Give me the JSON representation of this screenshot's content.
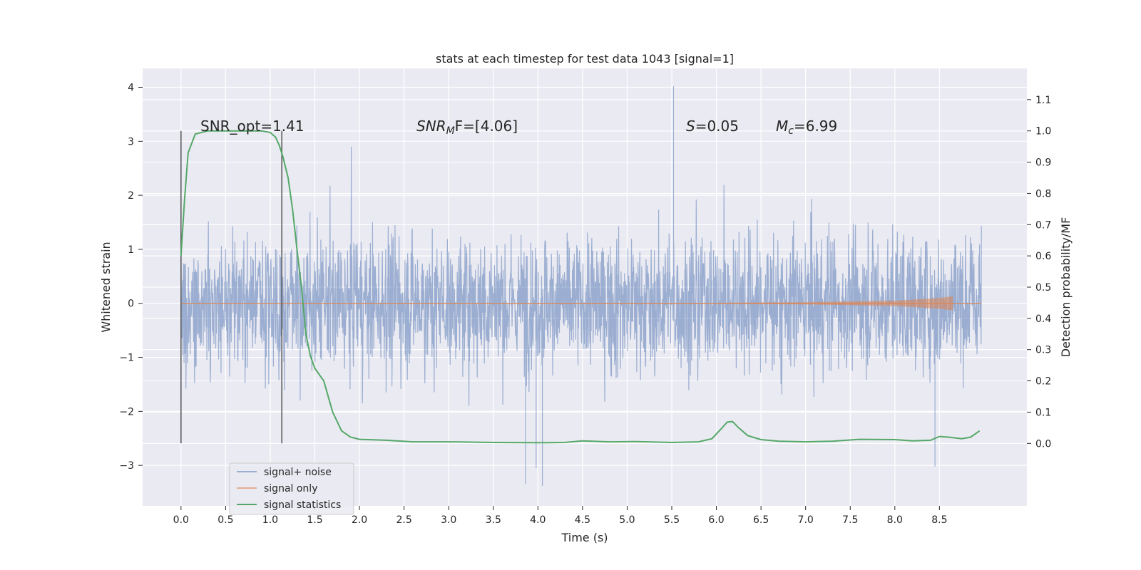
{
  "chart_data": {
    "type": "line",
    "title": "stats at each timestep for test data 1043 [signal=1]",
    "xlabel": "Time (s)",
    "ylabel": "Whitened strain",
    "ylabel_right": "Detection probability/MF",
    "xlim": [
      -0.43,
      9.48
    ],
    "ylim": [
      -3.75,
      4.35
    ],
    "ylim_right": [
      -0.2,
      1.2
    ],
    "grid": true,
    "legend_position": "lower-left",
    "x_ticks": [
      "0.0",
      "0.5",
      "1.0",
      "1.5",
      "2.0",
      "2.5",
      "3.0",
      "3.5",
      "4.0",
      "4.5",
      "5.0",
      "5.5",
      "6.0",
      "6.5",
      "7.0",
      "7.5",
      "8.0",
      "8.5"
    ],
    "y_ticks": [
      "4",
      "3",
      "2",
      "1",
      "0",
      "−1",
      "−2",
      "−3"
    ],
    "y_right_ticks": [
      "1.1",
      "1.0",
      "0.9",
      "0.8",
      "0.7",
      "0.6",
      "0.5",
      "0.4",
      "0.3",
      "0.2",
      "0.1",
      "0.0"
    ],
    "annotations": {
      "snr_opt": "SNR_opt=1.41",
      "snr_mf_prefix": "SNR",
      "snr_mf_sub": "M",
      "snr_mf_suffix": "F=[4.06]",
      "s_label": "S",
      "s_value": "=0.05",
      "mc_label": "M",
      "mc_sub": "c",
      "mc_value": "=6.99"
    },
    "markers_x": [
      0.0,
      1.13
    ],
    "series": [
      {
        "name": "signal+ noise",
        "color": "#4c72b0",
        "axis": "left",
        "description": "whitened noisy strain, roughly +/-1.5 with spikes",
        "x_range": [
          0.0,
          8.97
        ],
        "highlights": [
          {
            "x": 5.52,
            "y": 4.02
          },
          {
            "x": 3.86,
            "y": -3.35
          },
          {
            "x": 4.05,
            "y": -3.38
          },
          {
            "x": 3.98,
            "y": -3.05
          },
          {
            "x": 8.45,
            "y": -3.02
          }
        ]
      },
      {
        "name": "signal only",
        "color": "#dd8452",
        "axis": "left",
        "envelope": [
          [
            0.0,
            0.0
          ],
          [
            6.0,
            0.01
          ],
          [
            7.0,
            0.02
          ],
          [
            8.0,
            0.05
          ],
          [
            8.5,
            0.1
          ],
          [
            8.65,
            0.13
          ]
        ]
      },
      {
        "name": "signal statistics",
        "color": "#55a868",
        "axis": "right",
        "x": [
          0.0,
          0.04,
          0.08,
          0.16,
          0.3,
          0.5,
          0.7,
          0.9,
          1.0,
          1.06,
          1.1,
          1.14,
          1.2,
          1.25,
          1.3,
          1.35,
          1.4,
          1.45,
          1.5,
          1.6,
          1.7,
          1.8,
          1.9,
          2.0,
          2.3,
          2.6,
          3.0,
          3.5,
          4.0,
          4.3,
          4.5,
          4.8,
          5.1,
          5.5,
          5.8,
          5.95,
          6.05,
          6.12,
          6.18,
          6.25,
          6.35,
          6.5,
          6.7,
          7.0,
          7.3,
          7.6,
          8.0,
          8.2,
          8.4,
          8.5,
          8.6,
          8.75,
          8.85,
          8.95
        ],
        "y": [
          0.6,
          0.78,
          0.93,
          0.99,
          1.0,
          1.0,
          1.0,
          1.0,
          0.995,
          0.98,
          0.955,
          0.92,
          0.85,
          0.75,
          0.62,
          0.5,
          0.35,
          0.28,
          0.24,
          0.2,
          0.1,
          0.04,
          0.02,
          0.013,
          0.01,
          0.005,
          0.005,
          0.003,
          0.002,
          0.003,
          0.008,
          0.005,
          0.006,
          0.003,
          0.005,
          0.015,
          0.045,
          0.068,
          0.07,
          0.05,
          0.025,
          0.012,
          0.007,
          0.005,
          0.007,
          0.013,
          0.012,
          0.008,
          0.01,
          0.022,
          0.02,
          0.015,
          0.02,
          0.04
        ]
      }
    ]
  }
}
